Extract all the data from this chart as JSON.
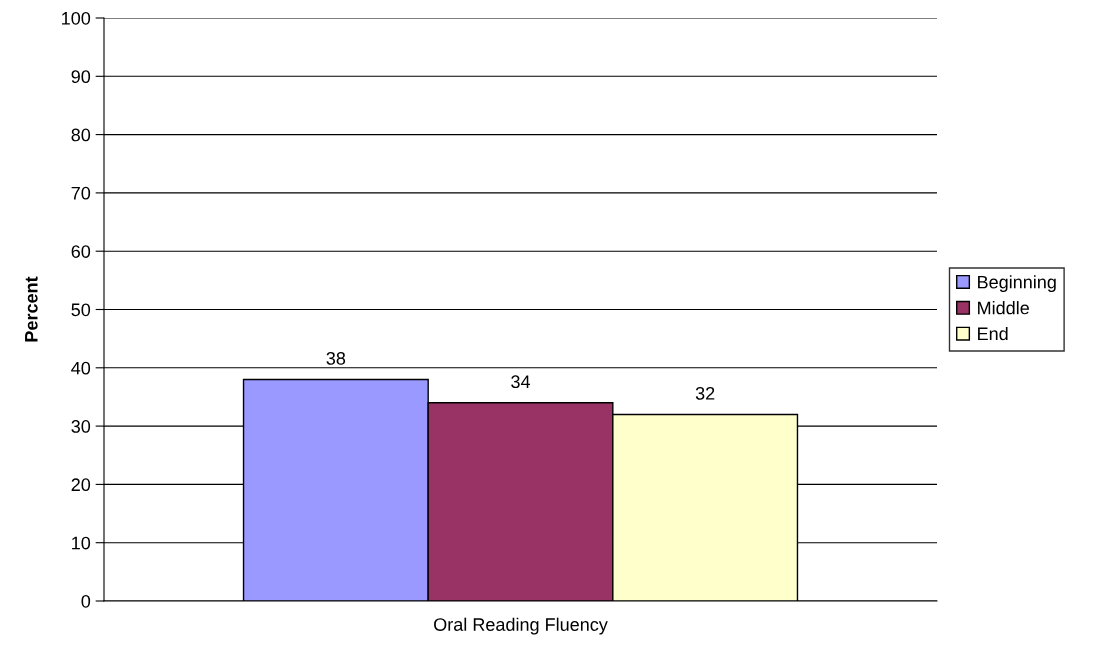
{
  "chart_data": {
    "type": "bar",
    "ylabel": "Percent",
    "categories": [
      "Oral Reading Fluency"
    ],
    "series": [
      {
        "name": "Beginning",
        "color": "#9999ff",
        "values": [
          38
        ]
      },
      {
        "name": "Middle",
        "color": "#993366",
        "values": [
          34
        ]
      },
      {
        "name": "End",
        "color": "#ffffcc",
        "values": [
          32
        ]
      }
    ],
    "ylim": [
      0,
      100
    ],
    "yticks": [
      0,
      10,
      20,
      30,
      40,
      50,
      60,
      70,
      80,
      90,
      100
    ],
    "grid": "y",
    "legend": "right",
    "data_labels": true
  }
}
